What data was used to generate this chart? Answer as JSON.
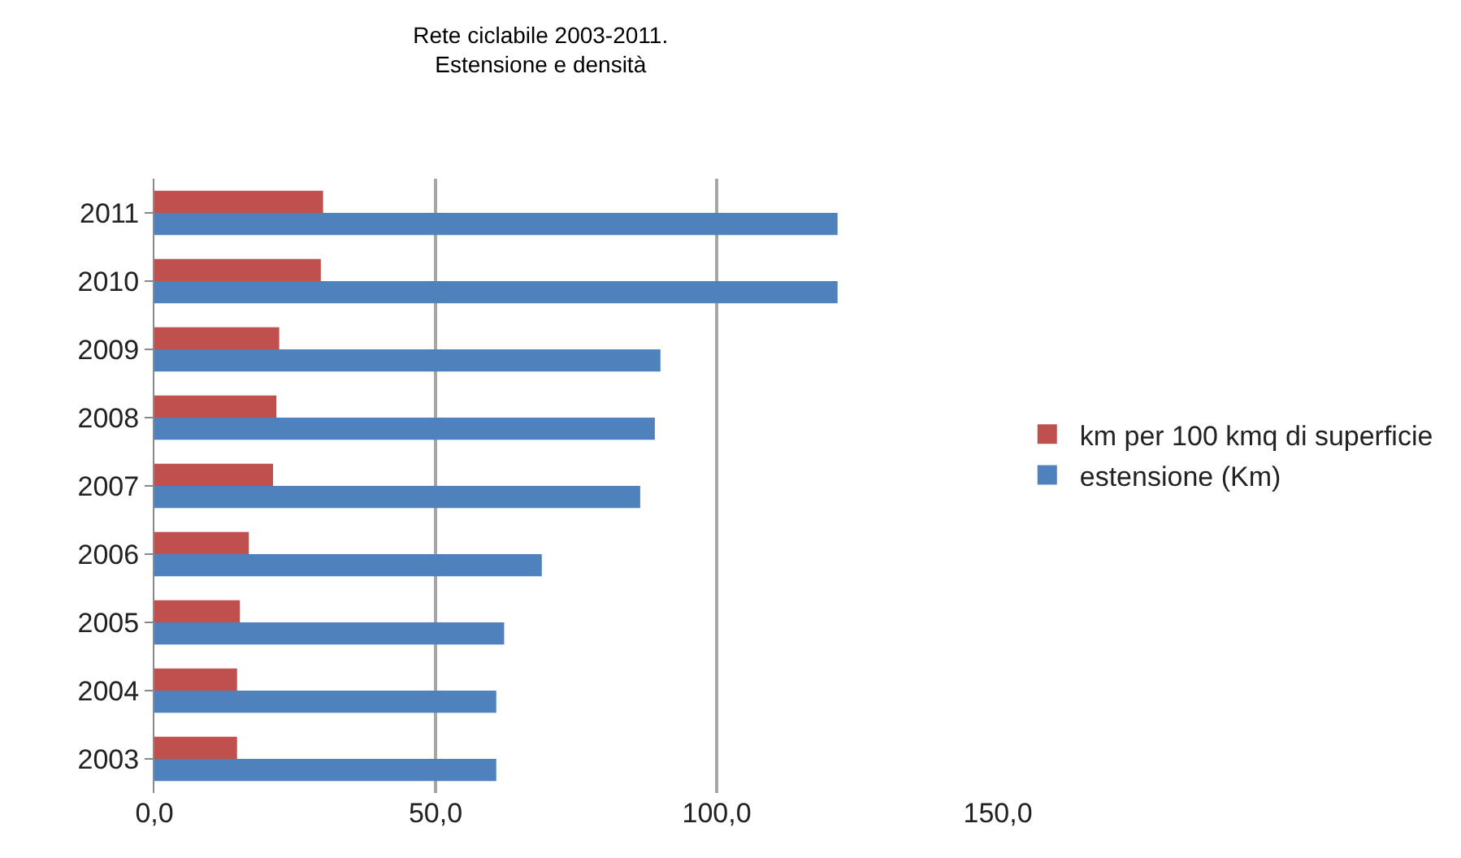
{
  "chart_data": {
    "type": "bar",
    "orientation": "horizontal",
    "title": "Rete ciclabile 2003-2011.\nEstensione e densità",
    "categories": [
      "2011",
      "2010",
      "2009",
      "2008",
      "2007",
      "2006",
      "2005",
      "2004",
      "2003"
    ],
    "series": [
      {
        "name": "km per 100 kmq di superficie",
        "color": "#c0504d",
        "values": [
          30.0,
          29.6,
          22.2,
          21.7,
          21.1,
          16.8,
          15.2,
          14.7,
          14.7
        ]
      },
      {
        "name": "estensione (Km)",
        "color": "#4f81bd",
        "values": [
          121.5,
          121.5,
          90.0,
          89.0,
          86.4,
          68.9,
          62.2,
          60.8,
          60.8
        ]
      }
    ],
    "xlim": [
      0,
      150
    ],
    "xticks": [
      {
        "value": 0,
        "label": "0,0"
      },
      {
        "value": 50,
        "label": "50,0"
      },
      {
        "value": 100,
        "label": "100,0"
      },
      {
        "value": 150,
        "label": "150,0"
      }
    ],
    "grid": "x",
    "legend": "right"
  }
}
